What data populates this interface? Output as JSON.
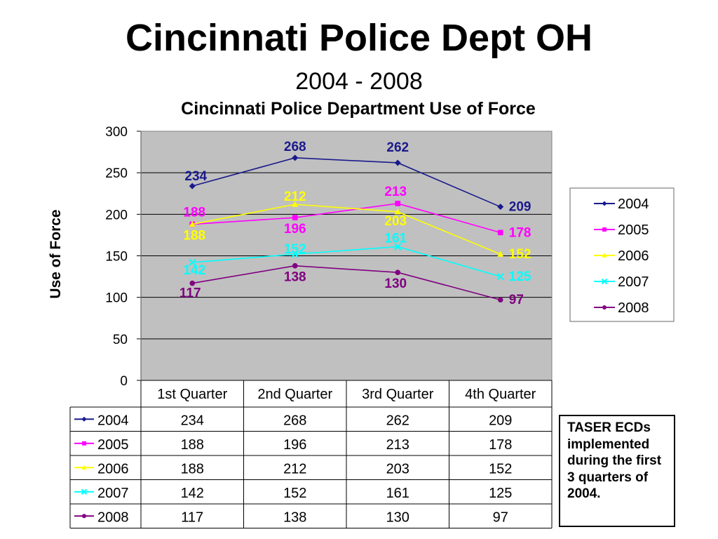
{
  "slide": {
    "title": "Cincinnati Police Dept OH",
    "subtitle": "2004 - 2008",
    "note": "TASER ECDs implemented during the first 3 quarters of 2004."
  },
  "chart_data": {
    "type": "line",
    "title": "Cincinnati Police Department Use of Force",
    "ylabel": "Use of Force",
    "xlabel": "",
    "ylim": [
      0,
      300
    ],
    "yticks": [
      0,
      50,
      100,
      150,
      200,
      250,
      300
    ],
    "grid": true,
    "legend_position": "right",
    "categories": [
      "1st Quarter",
      "2nd Quarter",
      "3rd Quarter",
      "4th Quarter"
    ],
    "series": [
      {
        "name": "2004",
        "values": [
          234,
          268,
          262,
          209
        ],
        "color": "#1a1a8c",
        "marker": "diamond"
      },
      {
        "name": "2005",
        "values": [
          188,
          196,
          213,
          178
        ],
        "color": "#ff00ff",
        "marker": "square"
      },
      {
        "name": "2006",
        "values": [
          188,
          212,
          203,
          152
        ],
        "color": "#ffff00",
        "marker": "triangle"
      },
      {
        "name": "2007",
        "values": [
          142,
          152,
          161,
          125
        ],
        "color": "#00ffff",
        "marker": "x"
      },
      {
        "name": "2008",
        "values": [
          117,
          138,
          130,
          97
        ],
        "color": "#800080",
        "marker": "circle"
      }
    ],
    "data_table": true
  }
}
